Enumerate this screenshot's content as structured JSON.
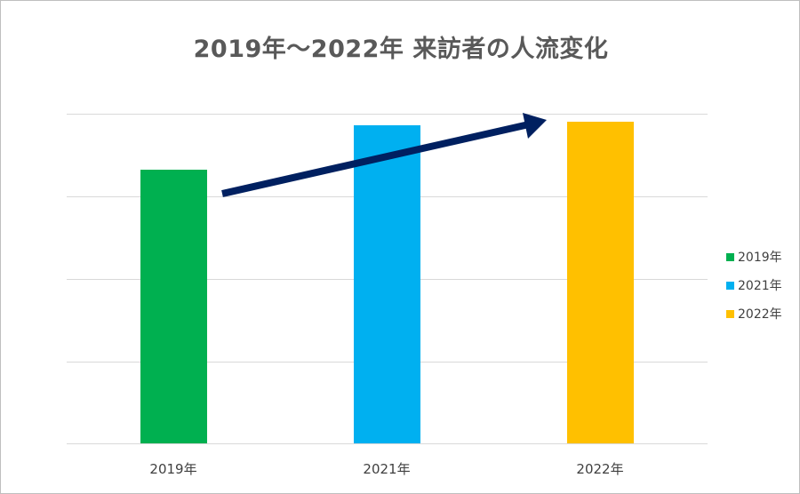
{
  "title": "2019年～2022年 来訪者の人流変化",
  "legend": {
    "items": [
      {
        "label": "2019年",
        "color": "#00b050"
      },
      {
        "label": "2021年",
        "color": "#00b0f0"
      },
      {
        "label": "2022年",
        "color": "#ffc000"
      }
    ]
  },
  "x_axis": {
    "labels": [
      "2019年",
      "2021年",
      "2022年"
    ]
  },
  "annotation": {
    "type": "arrow",
    "color": "#002060",
    "meaning": "upward trend from 2019 to 2022"
  },
  "chart_data": {
    "type": "bar",
    "title": "2019年～2022年 来訪者の人流変化",
    "categories": [
      "2019年",
      "2021年",
      "2022年"
    ],
    "series": [
      {
        "name": "2019年",
        "values": [
          83,
          null,
          null
        ],
        "color": "#00b050"
      },
      {
        "name": "2021年",
        "values": [
          null,
          96.5,
          null
        ],
        "color": "#00b0f0"
      },
      {
        "name": "2022年",
        "values": [
          null,
          null,
          97.6
        ],
        "color": "#ffc000"
      }
    ],
    "values": [
      83,
      96.5,
      97.6
    ],
    "value_note": "Relative values estimated from gridlines (top gridline = 100); no numeric axis labels shown",
    "xlabel": "",
    "ylabel": "",
    "ylim": [
      0,
      100
    ],
    "grid": true,
    "gridline_count": 5,
    "y_tick_labels_visible": false,
    "legend_position": "right",
    "annotations": [
      "dark navy arrow rising from 2019 bar toward 2022 bar"
    ]
  }
}
